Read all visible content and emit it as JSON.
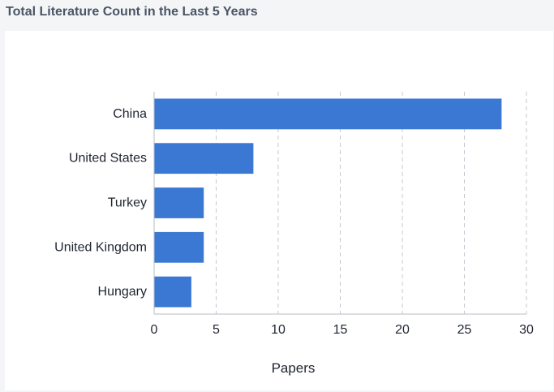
{
  "header": {
    "title": "Total Literature Count in the Last 5 Years"
  },
  "chart_data": {
    "type": "bar",
    "orientation": "horizontal",
    "title": "",
    "categories": [
      "China",
      "United States",
      "Turkey",
      "United Kingdom",
      "Hungary"
    ],
    "values": [
      28,
      8,
      4,
      4,
      3
    ],
    "xlabel": "Papers",
    "ylabel": "",
    "xlim": [
      0,
      30
    ],
    "xticks": [
      0,
      5,
      10,
      15,
      20,
      25,
      30
    ],
    "grid": "vertical-dashed",
    "bar_color": "#3a78d4"
  }
}
